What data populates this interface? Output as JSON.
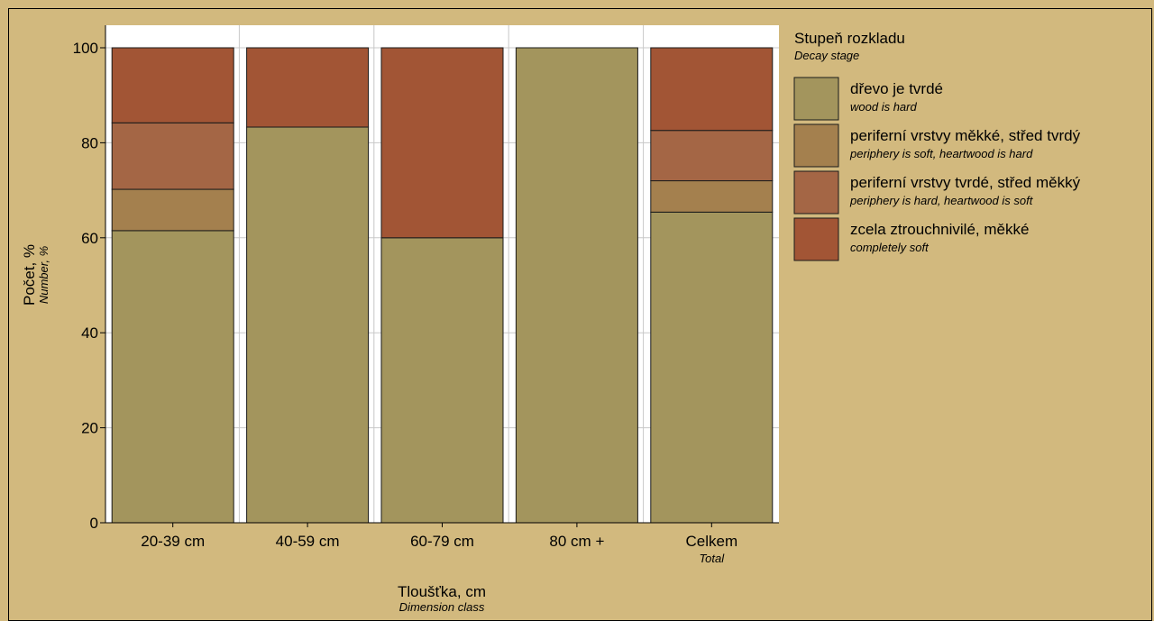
{
  "colors": {
    "background": "#d2b97e",
    "plot_background": "#ffffff",
    "hard": "#a3955d",
    "periphery_soft": "#a4804e",
    "periphery_hard": "#a46645",
    "completely_soft": "#a25535"
  },
  "chart_data": {
    "type": "bar",
    "stacked": true,
    "categories": [
      "20-39 cm",
      "40-59 cm",
      "60-79 cm",
      "80 cm +",
      "Celkem"
    ],
    "category_sublabels": [
      "",
      "",
      "",
      "",
      "Total"
    ],
    "series": [
      {
        "name": "dřevo je tvrdé",
        "name_en": "wood is hard",
        "color": "#a3955d",
        "values": [
          61.5,
          83.3,
          60.0,
          100.0,
          65.4
        ]
      },
      {
        "name": "periferní vrstvy měkké, střed tvrdý",
        "name_en": "periphery is soft, heartwood is hard",
        "color": "#a4804e",
        "values": [
          8.7,
          0,
          0,
          0,
          6.6
        ]
      },
      {
        "name": "periferní vrstvy tvrdé, střed měkký",
        "name_en": "periphery is hard, heartwood is soft",
        "color": "#a46645",
        "values": [
          14.0,
          0,
          0,
          0,
          10.6
        ]
      },
      {
        "name": "zcela ztrouchnivilé, měkké",
        "name_en": "completely soft",
        "color": "#a25535",
        "values": [
          15.8,
          16.7,
          40.0,
          0,
          17.4
        ]
      }
    ],
    "ylabel": "Počet, %",
    "ylabel_en": "Number, %",
    "xlabel": "Tloušťka, cm",
    "xlabel_en": "Dimension class",
    "yticks": [
      0,
      20,
      40,
      60,
      80,
      100
    ],
    "ylim": [
      0,
      100
    ],
    "grid": true,
    "legend_title": "Stupeň rozkladu",
    "legend_subtitle": "Decay stage",
    "legend_position": "right"
  }
}
